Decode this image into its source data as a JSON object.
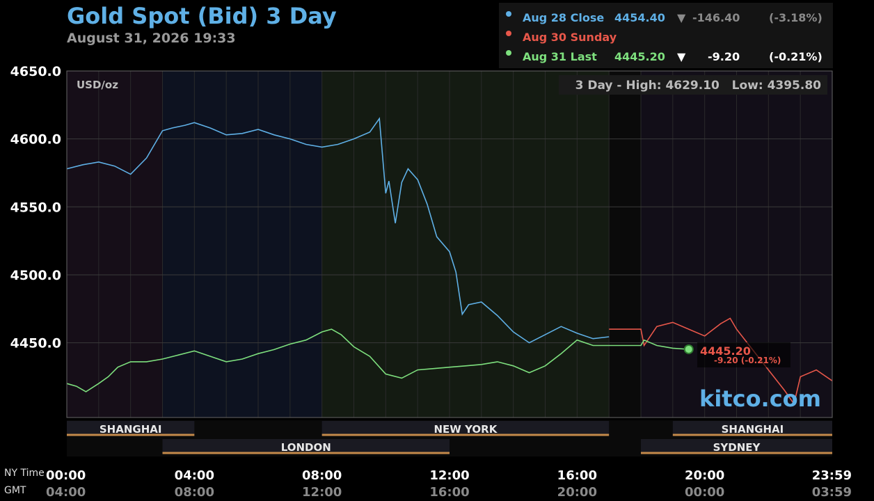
{
  "header": {
    "title": "Gold Spot (Bid) 3 Day",
    "timestamp": "August 31, 2026 19:33"
  },
  "legend": {
    "rows": [
      {
        "label": "Aug 28 Close",
        "value": "4454.40",
        "arrow": "▼",
        "change": "-146.40",
        "pct": "(-3.18%)",
        "color": "#5fb0e6",
        "change_color": "#8a8a8a"
      },
      {
        "label": "Aug 30 Sunday",
        "value": "",
        "arrow": "",
        "change": "",
        "pct": "",
        "color": "#e8574a",
        "change_color": "#8a8a8a"
      },
      {
        "label": "Aug 31 Last",
        "value": "4445.20",
        "arrow": "▼",
        "change": "-9.20",
        "pct": "(-0.21%)",
        "color": "#7ee07e",
        "change_color": "#ffffff"
      }
    ]
  },
  "chart_meta": {
    "unit_label": "USD/oz",
    "high_low": "3 Day - High: 4629.10   Low: 4395.80",
    "last_marker_value": "4445.20",
    "last_marker_change": "-9.20 (-0.21%)",
    "watermark": "kitco.com",
    "ny_time_label": "NY Time",
    "gmt_label": "GMT",
    "gmt_ticks": [
      "04:00",
      "08:00",
      "12:00",
      "16:00",
      "20:00",
      "00:00",
      "03:59"
    ],
    "sessions_row1": [
      {
        "name": "SHANGHAI",
        "start": 0,
        "end": 4
      },
      {
        "name": "NEW YORK",
        "start": 8,
        "end": 17
      },
      {
        "name": "SHANGHAI",
        "start": 19,
        "end": 24
      }
    ],
    "sessions_row2": [
      {
        "name": "LONDON",
        "start": 3,
        "end": 12
      },
      {
        "name": "SYDNEY",
        "start": 18,
        "end": 24
      }
    ]
  },
  "chart_data": {
    "type": "line",
    "title": "Gold Spot (Bid) 3 Day",
    "ylabel": "USD/oz",
    "ylim": [
      4395,
      4650
    ],
    "yticks": [
      4450.0,
      4500.0,
      4550.0,
      4600.0,
      4650.0
    ],
    "xlim": [
      0,
      24
    ],
    "xticks": [
      "00:00",
      "04:00",
      "08:00",
      "12:00",
      "16:00",
      "20:00",
      "23:59"
    ],
    "series": [
      {
        "name": "Aug 28 Close",
        "color": "#5fb0e6",
        "x": [
          0,
          0.5,
          1,
          1.5,
          2,
          2.5,
          3,
          3.3,
          3.7,
          4,
          4.5,
          5,
          5.5,
          6,
          6.5,
          7,
          7.5,
          8,
          8.5,
          9,
          9.5,
          9.8,
          10,
          10.1,
          10.3,
          10.5,
          10.7,
          11,
          11.3,
          11.6,
          12,
          12.2,
          12.4,
          12.6,
          13,
          13.5,
          14,
          14.5,
          15,
          15.5,
          16,
          16.5,
          17
        ],
        "y": [
          4578,
          4581,
          4583,
          4580,
          4574,
          4586,
          4606,
          4608,
          4610,
          4612,
          4608,
          4603,
          4604,
          4607,
          4603,
          4600,
          4596,
          4594,
          4596,
          4600,
          4605,
          4615,
          4560,
          4569,
          4538,
          4568,
          4578,
          4570,
          4552,
          4528,
          4517,
          4502,
          4471,
          4478,
          4480,
          4470,
          4458,
          4450,
          4456,
          4462,
          4457,
          4453,
          4454.4
        ]
      },
      {
        "name": "Aug 30 Sunday",
        "color": "#e8574a",
        "x": [
          17,
          18,
          18.1,
          18.5,
          19,
          19.5,
          20,
          20.5,
          20.8,
          21,
          21.5,
          22,
          22.5,
          22.8,
          23,
          23.5,
          24
        ],
        "y": [
          4460,
          4460,
          4448,
          4462,
          4465,
          4460,
          4455,
          4464,
          4468,
          4460,
          4445,
          4430,
          4415,
          4405,
          4425,
          4430,
          4422
        ]
      },
      {
        "name": "Aug 31 Last",
        "color": "#7ee07e",
        "x": [
          0,
          0.3,
          0.6,
          1,
          1.3,
          1.6,
          2,
          2.5,
          3,
          3.5,
          4,
          4.5,
          5,
          5.5,
          6,
          6.5,
          7,
          7.5,
          8,
          8.3,
          8.6,
          9,
          9.5,
          10,
          10.5,
          11,
          11.5,
          12,
          12.5,
          13,
          13.5,
          14,
          14.5,
          15,
          15.5,
          16,
          16.5,
          17,
          18,
          18.1,
          18.5,
          19,
          19.5
        ],
        "y": [
          4420,
          4418,
          4414,
          4420,
          4425,
          4432,
          4436,
          4436,
          4438,
          4441,
          4444,
          4440,
          4436,
          4438,
          4442,
          4445,
          4449,
          4452,
          4458,
          4460,
          4456,
          4447,
          4440,
          4427,
          4424,
          4430,
          4431,
          4432,
          4433,
          4434,
          4436,
          4433,
          4428,
          4433,
          4442,
          4452,
          4448,
          4448,
          4448,
          4452,
          4448,
          4446,
          4445.2
        ]
      }
    ]
  }
}
